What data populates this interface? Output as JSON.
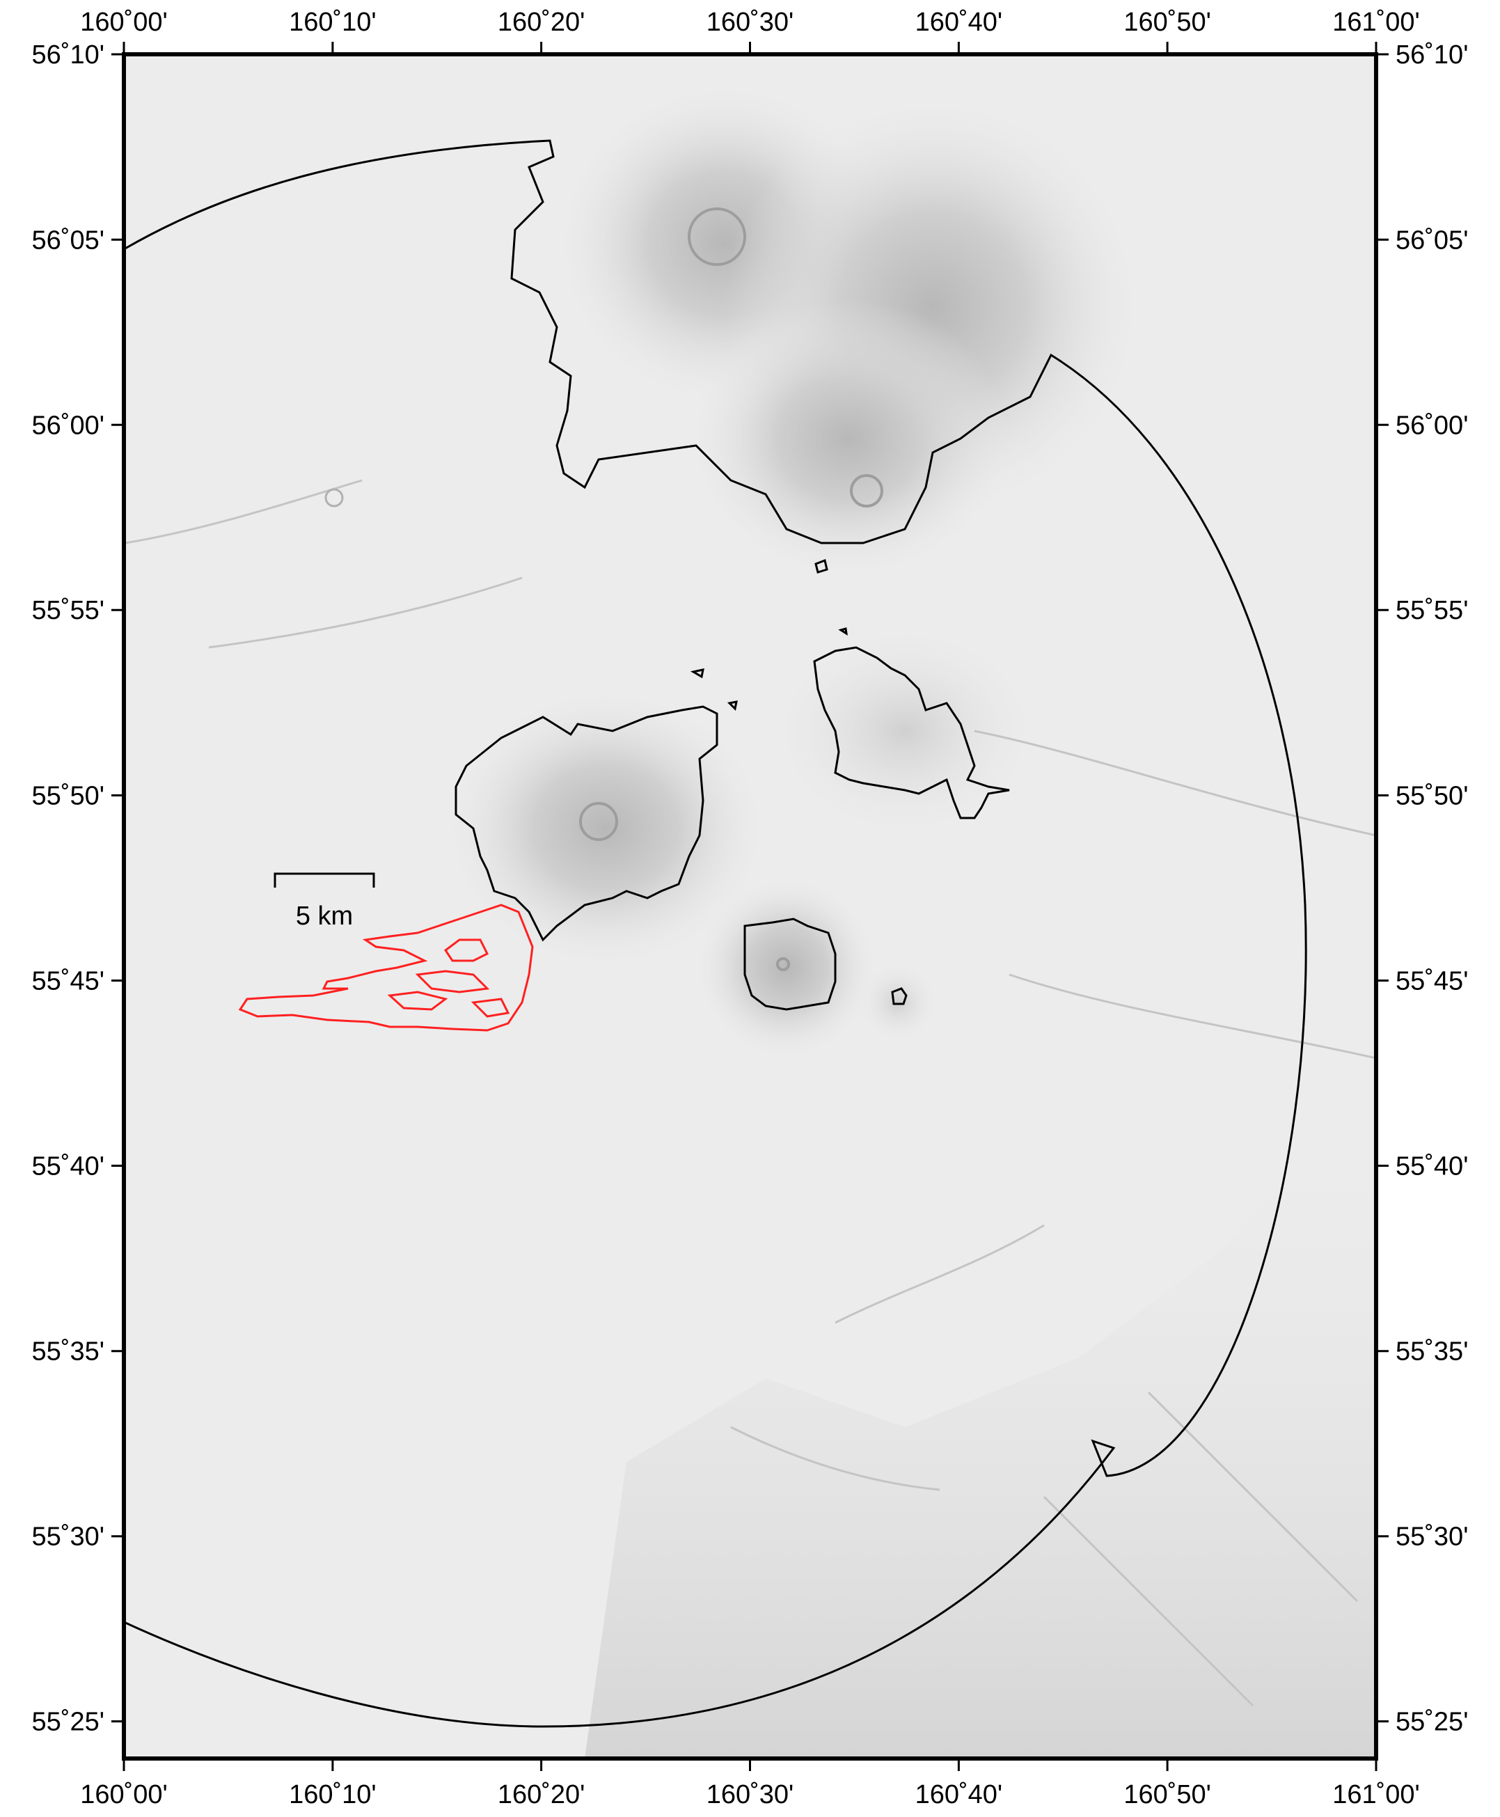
{
  "map": {
    "lon_range": [
      160.0,
      161.0
    ],
    "lat_range": [
      55.4,
      56.1667
    ],
    "style": "grayscale shaded relief",
    "colors": {
      "frame": "#000000",
      "boundary": "#000000",
      "lava_flow": "#ff2020",
      "relief_base": "#ececec"
    },
    "lon_ticks": [
      {
        "value": 160.0,
        "label": "160˚00'"
      },
      {
        "value": 160.1667,
        "label": "160˚10'"
      },
      {
        "value": 160.3333,
        "label": "160˚20'"
      },
      {
        "value": 160.5,
        "label": "160˚30'"
      },
      {
        "value": 160.6667,
        "label": "160˚40'"
      },
      {
        "value": 160.8333,
        "label": "160˚50'"
      },
      {
        "value": 161.0,
        "label": "161˚00'"
      }
    ],
    "lat_ticks": [
      {
        "value": 56.1667,
        "label": "56˚10'"
      },
      {
        "value": 56.0833,
        "label": "56˚05'"
      },
      {
        "value": 56.0,
        "label": "56˚00'"
      },
      {
        "value": 55.9167,
        "label": "55˚55'"
      },
      {
        "value": 55.8333,
        "label": "55˚50'"
      },
      {
        "value": 55.75,
        "label": "55˚45'"
      },
      {
        "value": 55.6667,
        "label": "55˚40'"
      },
      {
        "value": 55.5833,
        "label": "55˚35'"
      },
      {
        "value": 55.5,
        "label": "55˚30'"
      },
      {
        "value": 55.4167,
        "label": "55˚25'"
      }
    ],
    "scale_bar": {
      "label": "5 km"
    }
  }
}
